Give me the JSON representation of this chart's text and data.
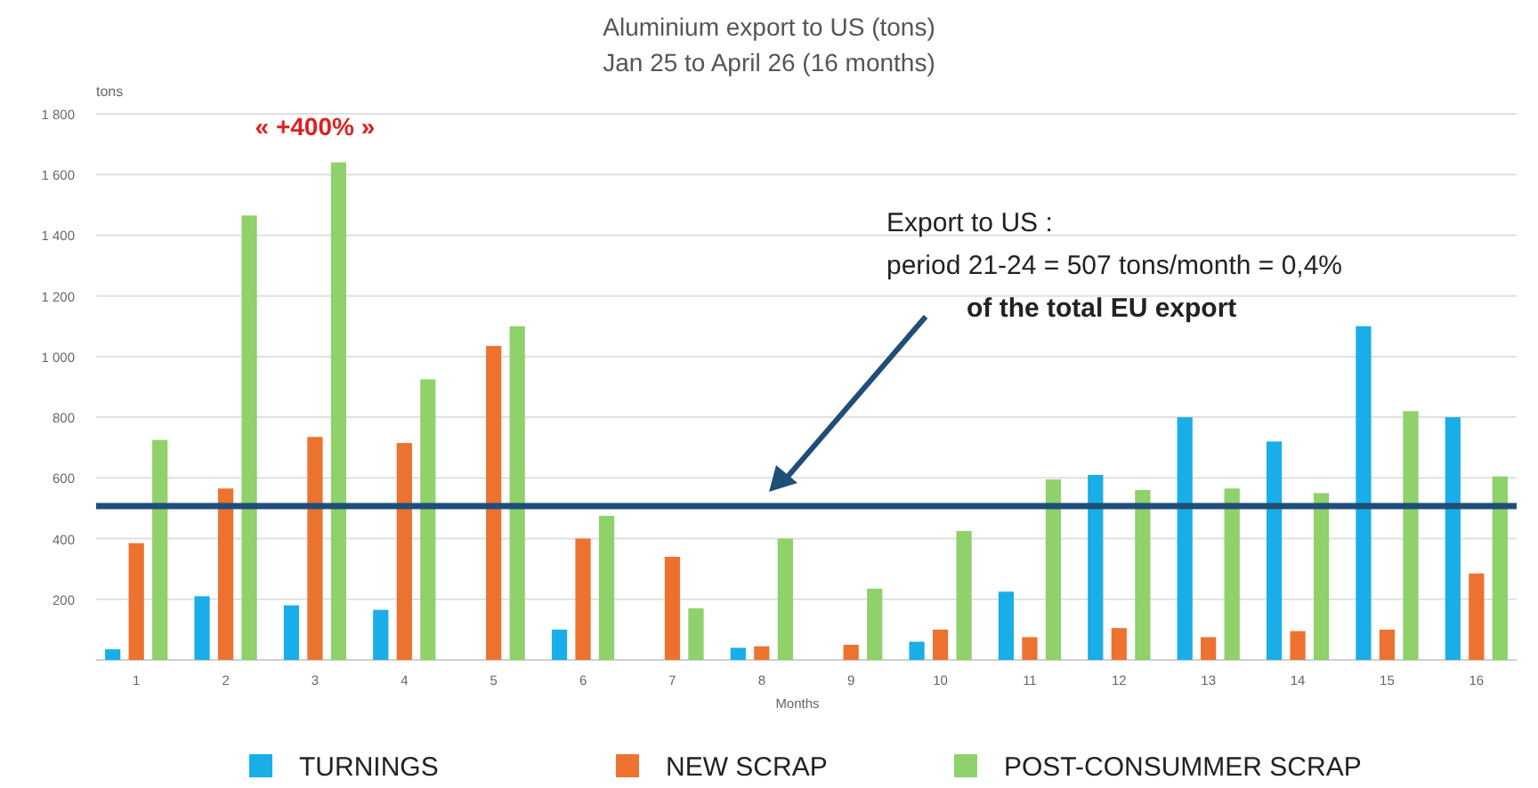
{
  "chart_data": {
    "type": "bar",
    "title": "Aluminium export to US (tons)",
    "subtitle": "Jan 25 to April 26 (16 months)",
    "xlabel": "Months",
    "ylabel": "tons",
    "categories": [
      "1",
      "2",
      "3",
      "4",
      "5",
      "6",
      "7",
      "8",
      "9",
      "10",
      "11",
      "12",
      "13",
      "14",
      "15",
      "16"
    ],
    "series": [
      {
        "name": "TURNINGS",
        "color": "#1aaee8",
        "values": [
          35,
          210,
          180,
          165,
          null,
          100,
          null,
          40,
          null,
          60,
          225,
          610,
          800,
          720,
          1100,
          800
        ]
      },
      {
        "name": "NEW SCRAP",
        "color": "#ed7230",
        "values": [
          385,
          565,
          735,
          715,
          1035,
          400,
          340,
          45,
          50,
          100,
          75,
          105,
          75,
          95,
          100,
          285
        ]
      },
      {
        "name": "POST-CONSUMMER SCRAP",
        "color": "#8fd16a",
        "values": [
          725,
          1465,
          1640,
          925,
          1100,
          475,
          170,
          400,
          235,
          425,
          595,
          560,
          565,
          550,
          820,
          605
        ]
      }
    ],
    "ylim": [
      0,
      1800
    ],
    "yticks": [
      {
        "value": 0,
        "label": null
      },
      200,
      400,
      600,
      800,
      {
        "value": 1000,
        "label": "1 000"
      },
      {
        "value": 1200,
        "label": "1 200"
      },
      {
        "value": 1400,
        "label": "1 400"
      },
      {
        "value": 1600,
        "label": "1 600"
      },
      {
        "value": 1800,
        "label": "1 800"
      }
    ],
    "grid": "y",
    "legend": "bottom",
    "ref_lines": [
      {
        "axis": "y",
        "value": 507,
        "color": "#1f4e79"
      }
    ],
    "annotations": [
      "« +400% »",
      "Export to US :",
      "period 21-24 = 507 tons/month = 0,4%",
      "of the total EU export"
    ]
  }
}
